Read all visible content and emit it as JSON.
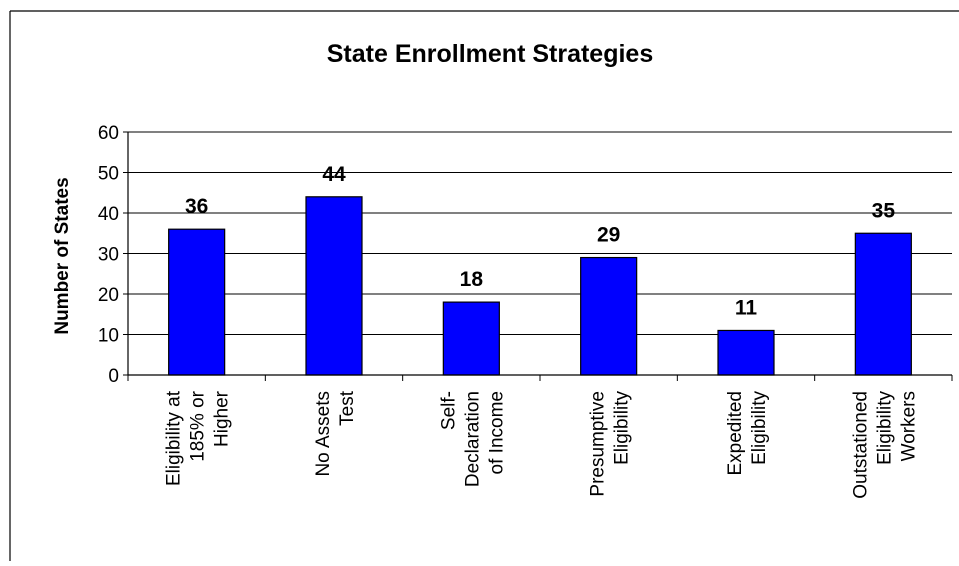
{
  "colors": {
    "bar_fill": "#0000FF",
    "bar_stroke": "#000000",
    "grid": "#000000",
    "frame": "#000000",
    "background": "#FFFFFF"
  },
  "chart_data": {
    "type": "bar",
    "title": "State Enrollment Strategies",
    "ylabel": "Number of States",
    "xlabel": "",
    "ylim": [
      0,
      60
    ],
    "yticks": [
      0,
      10,
      20,
      30,
      40,
      50,
      60
    ],
    "grid": true,
    "legend": "none",
    "categories": [
      [
        "Eligibility at",
        "185% or",
        "Higher"
      ],
      [
        "No Assets",
        "Test"
      ],
      [
        "Self-",
        "Declaration",
        "of Income"
      ],
      [
        "Presumptive",
        "Eligibility"
      ],
      [
        "Expedited",
        "Eligibility"
      ],
      [
        "Outstationed",
        "Eligibility",
        "Workers"
      ]
    ],
    "values": [
      36,
      44,
      18,
      29,
      11,
      35
    ],
    "data_labels": [
      "36",
      "44",
      "18",
      "29",
      "11",
      "35"
    ]
  }
}
